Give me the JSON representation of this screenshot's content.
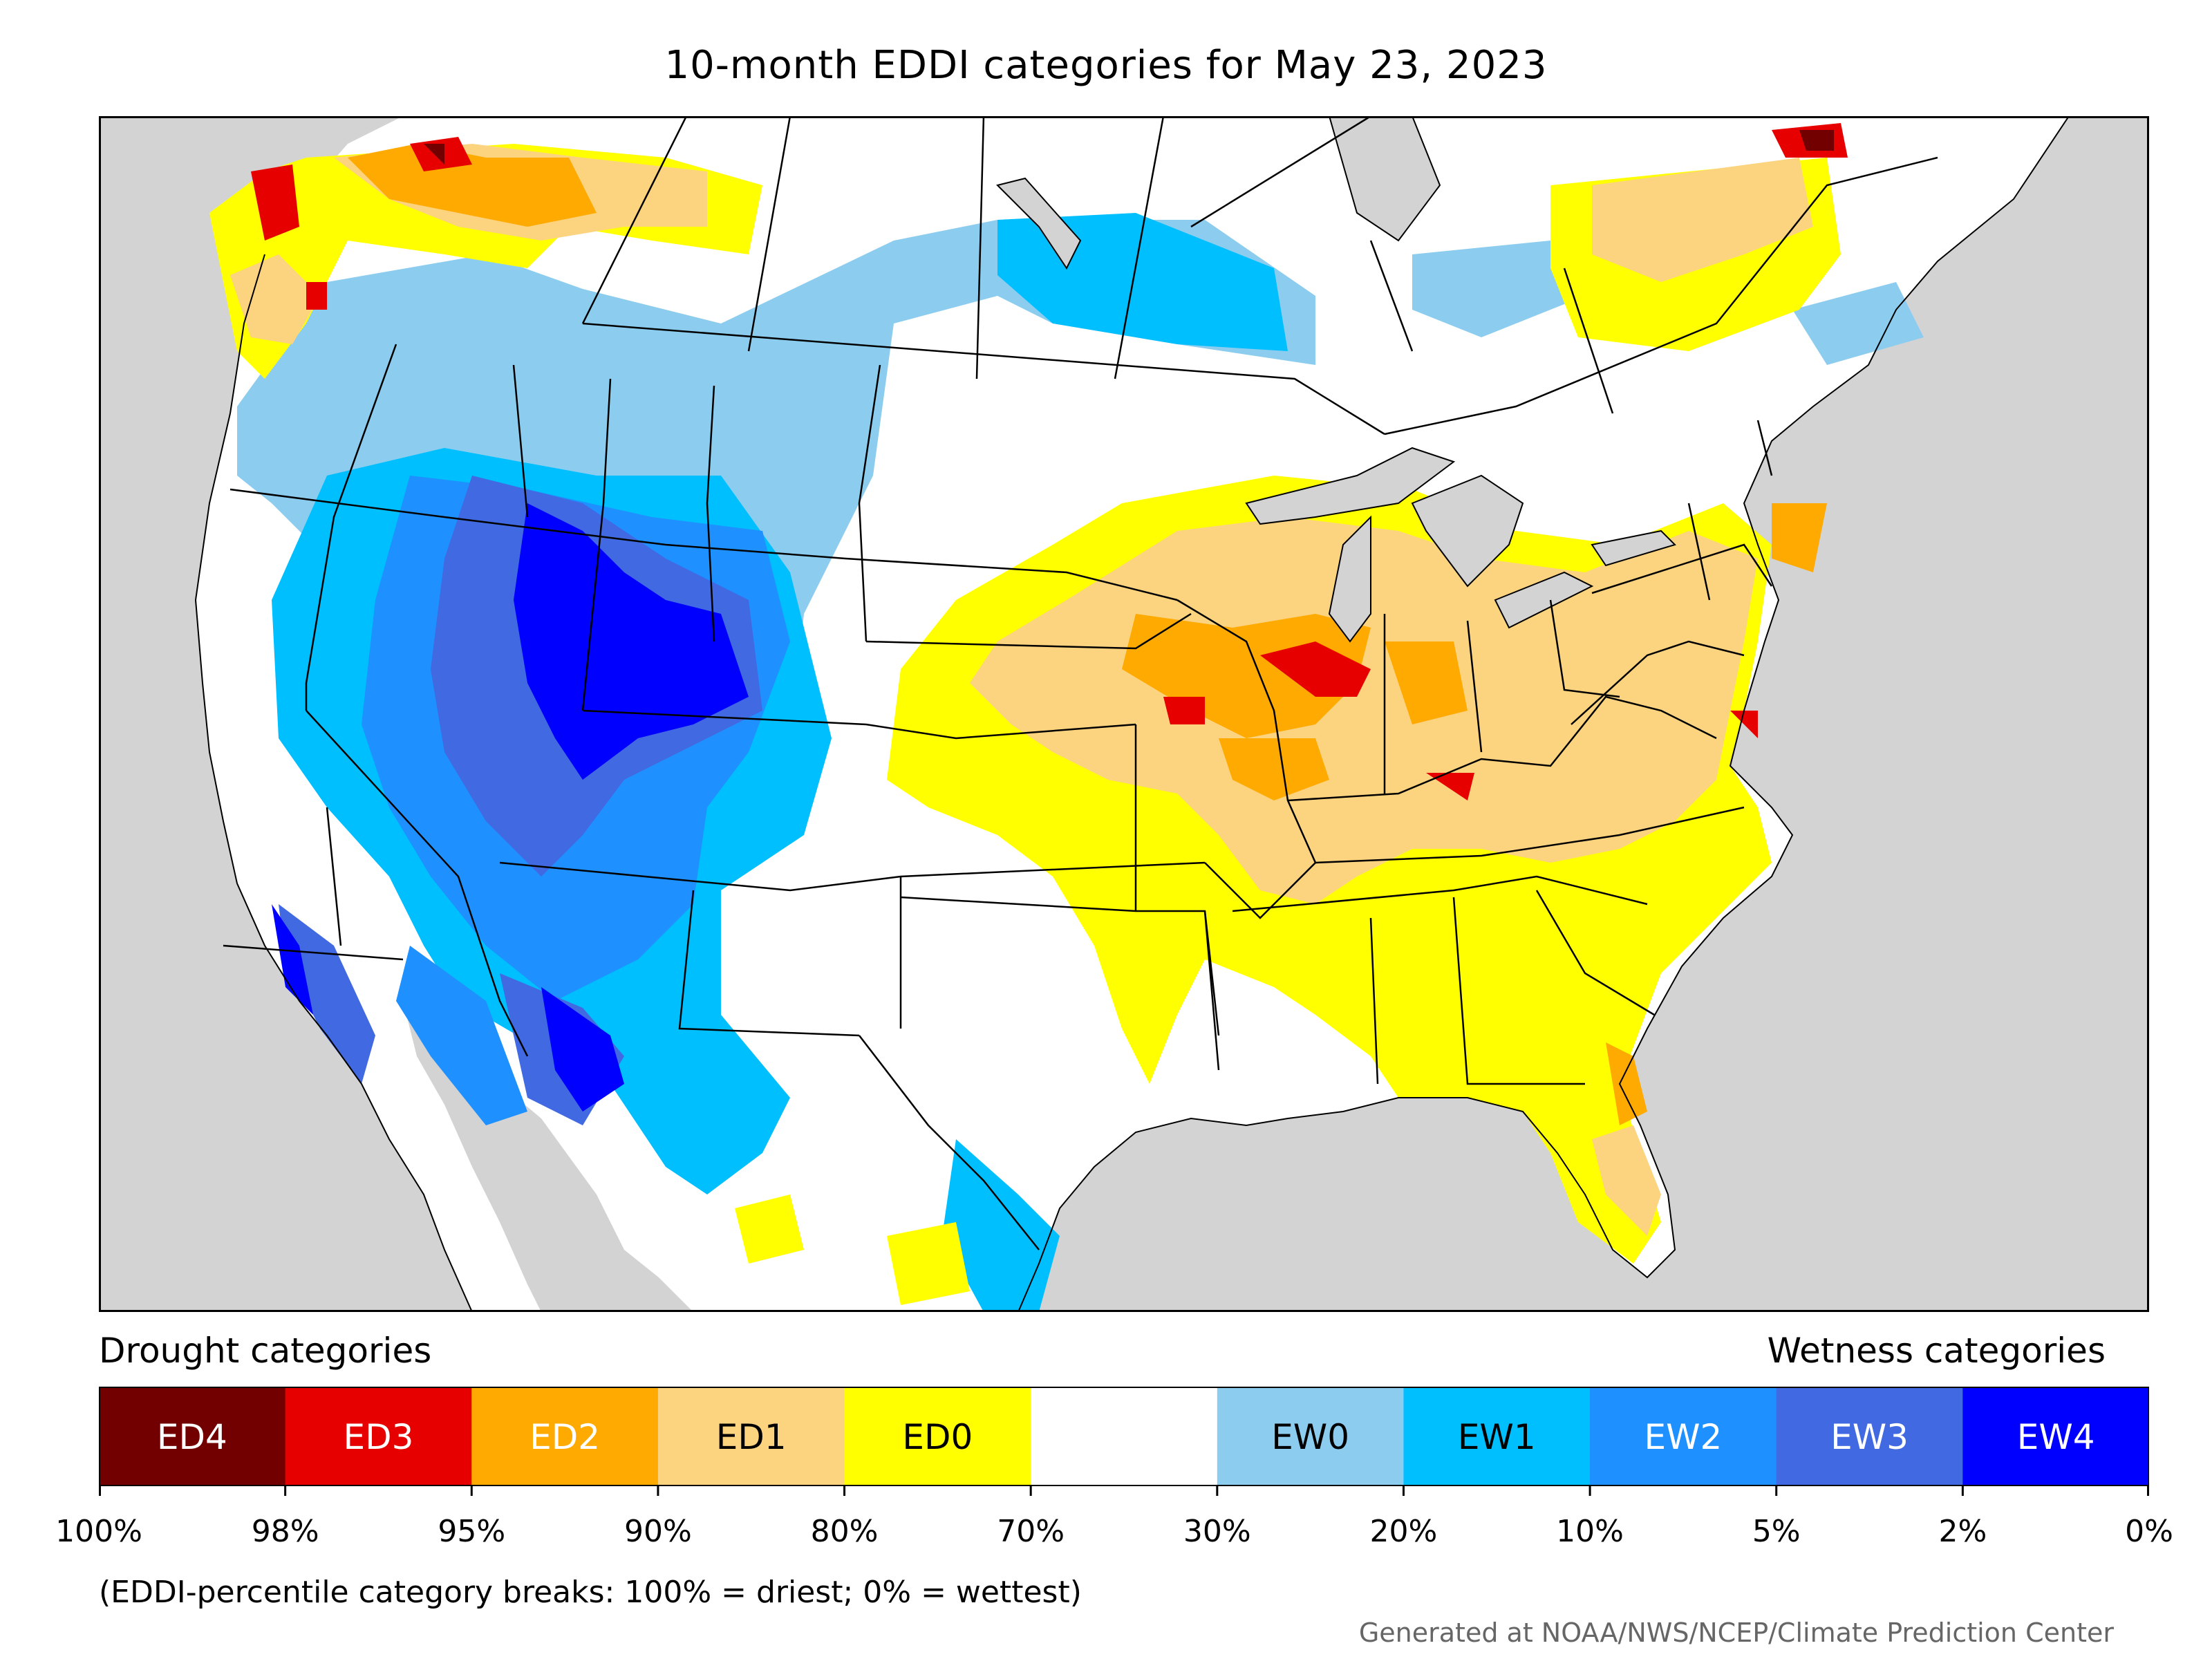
{
  "title": "10-month EDDI categories for May 23, 2023",
  "legend": {
    "drought_label": "Drought categories",
    "wetness_label": "Wetness categories",
    "categories": [
      {
        "label": "ED4",
        "color": "#730000",
        "text_color": "#ffffff"
      },
      {
        "label": "ED3",
        "color": "#e60000",
        "text_color": "#ffffff"
      },
      {
        "label": "ED2",
        "color": "#ffaa00",
        "text_color": "#ffffff"
      },
      {
        "label": "ED1",
        "color": "#fcd37f",
        "text_color": "#000000"
      },
      {
        "label": "ED0",
        "color": "#ffff00",
        "text_color": "#000000"
      },
      {
        "label": "",
        "color": "#ffffff",
        "text_color": "#000000"
      },
      {
        "label": "EW0",
        "color": "#8ccdef",
        "text_color": "#000000"
      },
      {
        "label": "EW1",
        "color": "#00bfff",
        "text_color": "#000000"
      },
      {
        "label": "EW2",
        "color": "#1e90ff",
        "text_color": "#ffffff"
      },
      {
        "label": "EW3",
        "color": "#4169e1",
        "text_color": "#ffffff"
      },
      {
        "label": "EW4",
        "color": "#0000ff",
        "text_color": "#ffffff"
      }
    ],
    "tick_labels": [
      "100%",
      "98%",
      "95%",
      "90%",
      "80%",
      "70%",
      "30%",
      "20%",
      "10%",
      "5%",
      "2%",
      "0%"
    ]
  },
  "note": "(EDDI-percentile category breaks: 100% = driest; 0% = wettest)",
  "credit": "Generated at NOAA/NWS/NCEP/Climate Prediction Center",
  "map_colors": {
    "ocean": "#d3d3d3",
    "land": "#ffffff",
    "borders": "#000000"
  }
}
